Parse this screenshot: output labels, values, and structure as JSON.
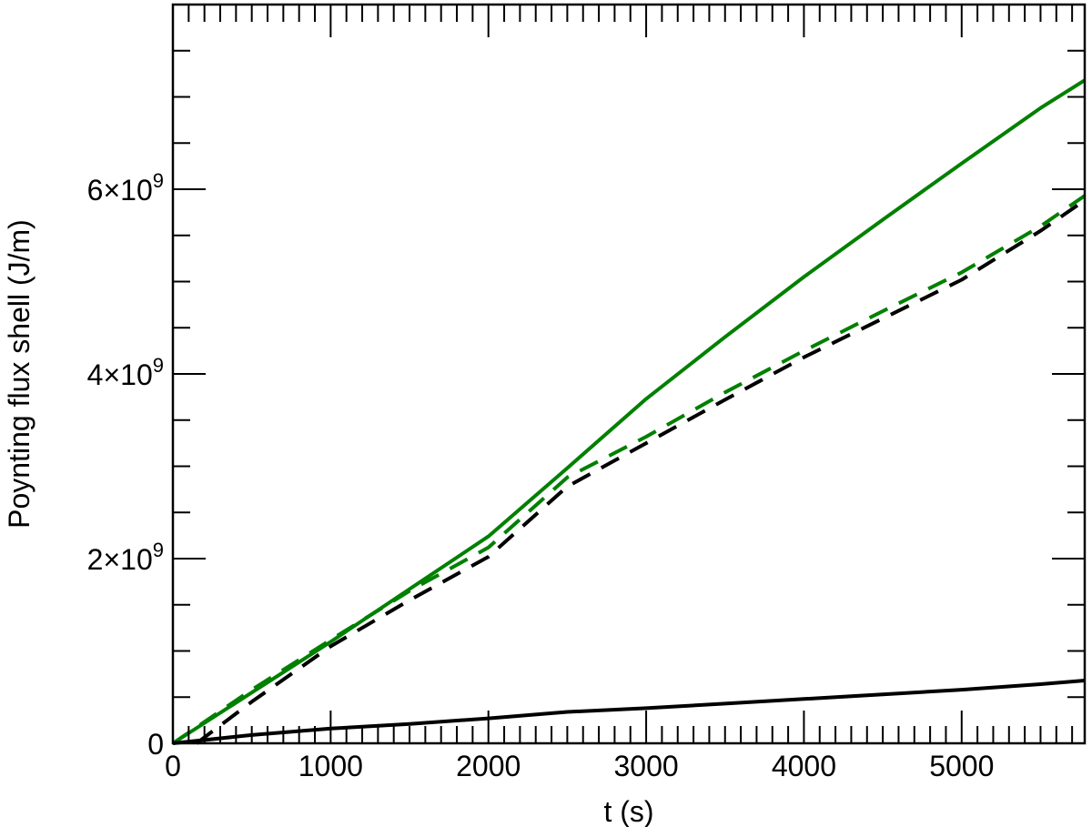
{
  "chart_data": {
    "type": "line",
    "title": "",
    "xlabel": "t (s)",
    "ylabel": "Poynting flux shell (J/m)",
    "xlim": [
      0,
      5780
    ],
    "ylim": [
      0,
      8000000000.0
    ],
    "x_major_ticks": [
      0,
      1000,
      2000,
      3000,
      4000,
      5000
    ],
    "x_tick_labels": [
      "0",
      "1000",
      "2000",
      "3000",
      "4000",
      "5000"
    ],
    "x_minor_step": 100,
    "y_major_ticks": [
      0,
      2000000000.0,
      4000000000.0,
      6000000000.0
    ],
    "y_tick_labels": [
      {
        "mant": "0",
        "exp": ""
      },
      {
        "mant": "2×10",
        "exp": "9"
      },
      {
        "mant": "4×10",
        "exp": "9"
      },
      {
        "mant": "6×10",
        "exp": "9"
      }
    ],
    "y_minor_step": 500000000.0,
    "grid": false,
    "series": [
      {
        "name": "green-solid",
        "color": "#008000",
        "dash": "solid",
        "x": [
          0,
          500,
          1000,
          1500,
          2000,
          2500,
          3000,
          3500,
          4000,
          4500,
          5000,
          5500,
          5780
        ],
        "y": [
          0,
          550000000.0,
          1100000000.0,
          1670000000.0,
          2240000000.0,
          2980000000.0,
          3730000000.0,
          4400000000.0,
          5050000000.0,
          5670000000.0,
          6280000000.0,
          6880000000.0,
          7180000000.0
        ]
      },
      {
        "name": "green-dashed",
        "color": "#008000",
        "dash": "dashed",
        "x": [
          0,
          500,
          1000,
          1500,
          2000,
          2500,
          3000,
          3500,
          4000,
          4500,
          5000,
          5500,
          5780
        ],
        "y": [
          0,
          580000000.0,
          1120000000.0,
          1650000000.0,
          2120000000.0,
          2880000000.0,
          3320000000.0,
          3800000000.0,
          4250000000.0,
          4680000000.0,
          5100000000.0,
          5600000000.0,
          5930000000.0
        ]
      },
      {
        "name": "black-dashed",
        "color": "#000000",
        "dash": "dashed",
        "x": [
          150,
          500,
          1000,
          1500,
          2000,
          2500,
          3000,
          3500,
          4000,
          4500,
          5000,
          5500,
          5780
        ],
        "y": [
          0,
          450000000.0,
          1050000000.0,
          1550000000.0,
          2020000000.0,
          2780000000.0,
          3250000000.0,
          3720000000.0,
          4180000000.0,
          4600000000.0,
          5020000000.0,
          5550000000.0,
          5880000000.0
        ]
      },
      {
        "name": "black-solid",
        "color": "#000000",
        "dash": "solid",
        "x": [
          0,
          500,
          1000,
          1500,
          2000,
          2500,
          3000,
          3500,
          4000,
          4500,
          5000,
          5500,
          5780
        ],
        "y": [
          0,
          90000000.0,
          160000000.0,
          210000000.0,
          270000000.0,
          340000000.0,
          380000000.0,
          430000000.0,
          480000000.0,
          530000000.0,
          580000000.0,
          640000000.0,
          680000000.0
        ]
      }
    ]
  }
}
